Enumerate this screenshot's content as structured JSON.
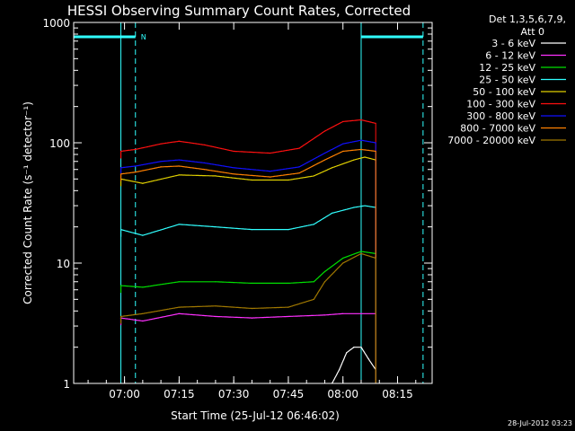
{
  "chart_data": {
    "type": "line",
    "title": "HESSI Observing Summary Count Rates, Corrected",
    "xlabel": "Start Time (25-Jul-12 06:46:02)",
    "ylabel": "Corrected Count Rate (s⁻¹ detector⁻¹)",
    "y_scale": "log",
    "ylim": [
      1,
      1000
    ],
    "xlim": [
      "06:46:02",
      "08:24:30"
    ],
    "x_ticks": [
      "07:00",
      "07:15",
      "07:30",
      "07:45",
      "08:00",
      "08:15"
    ],
    "y_ticks": [
      "1",
      "10",
      "100",
      "1000"
    ],
    "legend": {
      "placement": "right",
      "header": [
        "Det 1,3,5,6,7,9,",
        "Att 0"
      ],
      "entries": [
        {
          "label": "3 - 6 keV",
          "color": "#ffffff"
        },
        {
          "label": "6 - 12 keV",
          "color": "#ff30ff"
        },
        {
          "label": "12 - 25 keV",
          "color": "#00e000"
        },
        {
          "label": "25 - 50 keV",
          "color": "#30ffff"
        },
        {
          "label": "50 - 100 keV",
          "color": "#e0d000"
        },
        {
          "label": "100 - 300 keV",
          "color": "#ff1010"
        },
        {
          "label": "300 - 800 keV",
          "color": "#1010ff"
        },
        {
          "label": "800 - 7000 keV",
          "color": "#ff8000"
        },
        {
          "label": "7000 - 20000 keV",
          "color": "#a07800"
        }
      ]
    },
    "series": [
      {
        "name": "3 - 6 keV",
        "color": "#ffffff",
        "x": [
          "07:57",
          "07:59",
          "08:01",
          "08:03",
          "08:05",
          "08:07",
          "08:09"
        ],
        "y": [
          1,
          1.3,
          1.8,
          2.0,
          2.0,
          1.6,
          1.3
        ]
      },
      {
        "name": "6 - 12 keV",
        "color": "#ff30ff",
        "x": [
          "06:59",
          "07:05",
          "07:15",
          "07:25",
          "07:35",
          "07:45",
          "07:55",
          "08:00",
          "08:05",
          "08:09"
        ],
        "y": [
          3.5,
          3.3,
          3.8,
          3.6,
          3.5,
          3.6,
          3.7,
          3.8,
          3.8,
          3.8
        ]
      },
      {
        "name": "12 - 25 keV",
        "color": "#00e000",
        "x": [
          "06:59",
          "07:05",
          "07:15",
          "07:25",
          "07:35",
          "07:45",
          "07:52",
          "07:55",
          "08:00",
          "08:05",
          "08:09"
        ],
        "y": [
          6.5,
          6.3,
          7.0,
          7.0,
          6.8,
          6.8,
          7.0,
          8.5,
          11,
          12.5,
          12
        ]
      },
      {
        "name": "25 - 50 keV",
        "color": "#30ffff",
        "x": [
          "06:59",
          "07:05",
          "07:15",
          "07:25",
          "07:35",
          "07:45",
          "07:52",
          "07:57",
          "08:03",
          "08:06",
          "08:09"
        ],
        "y": [
          19,
          17,
          21,
          20,
          19,
          19,
          21,
          26,
          29,
          30,
          29
        ]
      },
      {
        "name": "50 - 100 keV",
        "color": "#e0d000",
        "x": [
          "06:59",
          "07:05",
          "07:15",
          "07:25",
          "07:35",
          "07:45",
          "07:52",
          "07:57",
          "08:03",
          "08:06",
          "08:09"
        ],
        "y": [
          50,
          46,
          54,
          53,
          49,
          49,
          53,
          62,
          72,
          76,
          72
        ]
      },
      {
        "name": "100 - 300 keV",
        "color": "#ff1010",
        "x": [
          "06:59",
          "07:03",
          "07:10",
          "07:15",
          "07:22",
          "07:30",
          "07:40",
          "07:48",
          "07:55",
          "08:00",
          "08:05",
          "08:09"
        ],
        "y": [
          85,
          88,
          98,
          103,
          96,
          85,
          82,
          90,
          125,
          150,
          155,
          145
        ]
      },
      {
        "name": "300 - 800 keV",
        "color": "#1010ff",
        "x": [
          "06:59",
          "07:03",
          "07:10",
          "07:15",
          "07:22",
          "07:30",
          "07:40",
          "07:48",
          "07:55",
          "08:00",
          "08:05",
          "08:09"
        ],
        "y": [
          62,
          64,
          70,
          72,
          68,
          62,
          58,
          63,
          82,
          98,
          105,
          100
        ]
      },
      {
        "name": "800 - 7000 keV",
        "color": "#ff8000",
        "x": [
          "06:59",
          "07:03",
          "07:10",
          "07:15",
          "07:22",
          "07:30",
          "07:40",
          "07:48",
          "07:55",
          "08:00",
          "08:05",
          "08:09"
        ],
        "y": [
          55,
          57,
          63,
          64,
          60,
          55,
          52,
          56,
          72,
          85,
          88,
          85
        ]
      },
      {
        "name": "7000 - 20000 keV",
        "color": "#a07800",
        "x": [
          "06:59",
          "07:05",
          "07:15",
          "07:25",
          "07:35",
          "07:45",
          "07:52",
          "07:55",
          "08:00",
          "08:05",
          "08:09"
        ],
        "y": [
          3.6,
          3.8,
          4.3,
          4.4,
          4.2,
          4.3,
          5.0,
          7.0,
          10,
          12,
          11
        ]
      }
    ],
    "annotations": {
      "night_bars": [
        {
          "x_start": "06:46:02",
          "x_end": "07:03"
        },
        {
          "x_start": "08:05",
          "x_end": "08:22"
        }
      ],
      "night_label": "N",
      "saa_markers": [
        "07:03",
        "08:22"
      ],
      "solid_markers": [
        "06:46:02",
        "06:59",
        "08:05"
      ],
      "data_span": {
        "start": "06:59",
        "end": "08:09"
      }
    }
  },
  "footer": {
    "timestamp": "28-Jul-2012 03:23"
  },
  "colors": {
    "background": "#000000",
    "axes": "#ffffff",
    "markers": "#30ffff"
  }
}
